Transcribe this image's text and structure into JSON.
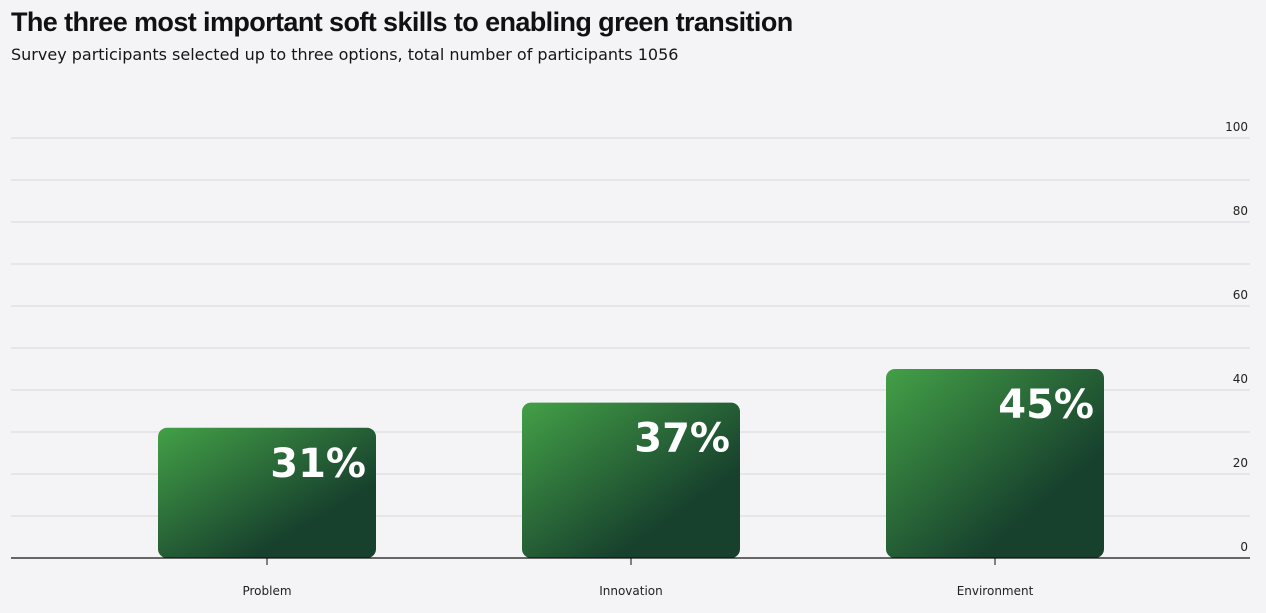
{
  "chart_data": {
    "type": "bar",
    "title": "The three most important soft skills to enabling green transition",
    "subtitle": "Survey participants selected up to three options, total number of participants 1056",
    "categories": [
      "Problem",
      "Innovation",
      "Environment"
    ],
    "values": [
      31,
      37,
      45
    ],
    "data_labels": [
      "31%",
      "37%",
      "45%"
    ],
    "ylim": [
      0,
      100
    ],
    "yticks": [
      0,
      20,
      40,
      60,
      80,
      100
    ],
    "y_axis_side": "right",
    "grid": true,
    "xlabel": "",
    "ylabel": "",
    "colors": {
      "bar_light": "#43a047",
      "bar_dark": "#17402d",
      "grid": "#d9d9dd",
      "axis": "#111111",
      "background": "#f4f4f6"
    }
  }
}
